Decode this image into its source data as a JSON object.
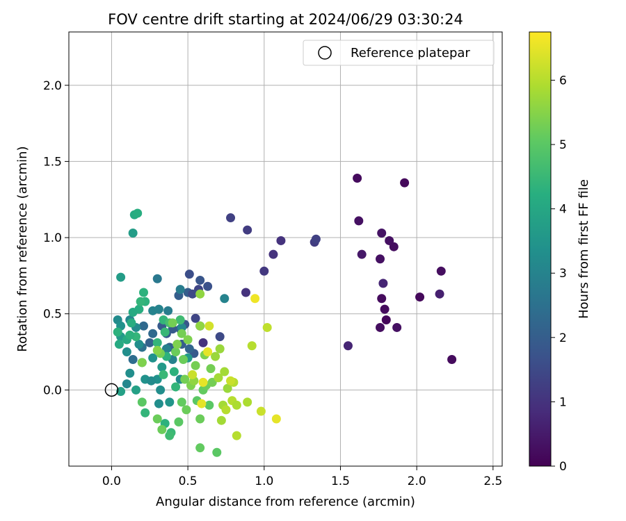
{
  "chart_data": {
    "type": "scatter",
    "title": "FOV centre drift starting at 2024/06/29 03:30:24",
    "xlabel": "Angular distance from reference (arcmin)",
    "ylabel": "Rotation from reference (arcmin)",
    "xlim": [
      -0.28,
      2.56
    ],
    "ylim": [
      -0.5,
      2.35
    ],
    "xticks": [
      0.0,
      0.5,
      1.0,
      1.5,
      2.0,
      2.5
    ],
    "yticks": [
      0.0,
      0.5,
      1.0,
      1.5,
      2.0
    ],
    "grid": true,
    "legend": {
      "position": "top-right",
      "entries": [
        {
          "label": "Reference platepar",
          "marker": "open-circle"
        }
      ]
    },
    "reference_point": {
      "x": 0.0,
      "y": 0.0
    },
    "colorbar": {
      "label": "Hours from first FF file",
      "colormap": "viridis",
      "range": [
        0,
        6.75
      ],
      "ticks": [
        0,
        1,
        2,
        3,
        4,
        5,
        6
      ]
    },
    "series": [
      {
        "points": [
          [
            1.61,
            1.39,
            0.2
          ],
          [
            1.92,
            1.36,
            0.15
          ],
          [
            1.62,
            1.11,
            0.3
          ],
          [
            1.77,
            1.03,
            0.35
          ],
          [
            1.82,
            0.98,
            0.3
          ],
          [
            1.85,
            0.94,
            0.25
          ],
          [
            1.64,
            0.89,
            0.45
          ],
          [
            1.76,
            0.86,
            0.3
          ],
          [
            1.78,
            0.7,
            0.7
          ],
          [
            1.77,
            0.6,
            0.2
          ],
          [
            1.79,
            0.53,
            0.2
          ],
          [
            1.8,
            0.46,
            0.1
          ],
          [
            1.76,
            0.41,
            0.25
          ],
          [
            1.87,
            0.41,
            0.3
          ],
          [
            2.02,
            0.61,
            0.15
          ],
          [
            2.15,
            0.63,
            0.6
          ],
          [
            2.16,
            0.78,
            0.25
          ],
          [
            2.23,
            0.2,
            0.2
          ],
          [
            1.55,
            0.29,
            0.7
          ],
          [
            0.78,
            1.13,
            1.3
          ],
          [
            0.89,
            1.05,
            1.2
          ],
          [
            1.11,
            0.98,
            1.0
          ],
          [
            1.33,
            0.97,
            1.2
          ],
          [
            1.34,
            0.99,
            1.3
          ],
          [
            1.06,
            0.89,
            1.0
          ],
          [
            1.0,
            0.78,
            1.1
          ],
          [
            0.88,
            0.64,
            1.0
          ],
          [
            0.71,
            0.35,
            1.5
          ],
          [
            0.6,
            0.31,
            1.0
          ],
          [
            0.51,
            0.76,
            1.6
          ],
          [
            0.58,
            0.72,
            1.8
          ],
          [
            0.63,
            0.68,
            1.7
          ],
          [
            0.57,
            0.66,
            1.4
          ],
          [
            0.5,
            0.64,
            2.0
          ],
          [
            0.53,
            0.63,
            1.5
          ],
          [
            0.44,
            0.62,
            2.0
          ],
          [
            0.55,
            0.47,
            1.4
          ],
          [
            0.48,
            0.43,
            1.8
          ],
          [
            0.4,
            0.4,
            1.9
          ],
          [
            0.36,
            0.37,
            1.9
          ],
          [
            0.58,
            0.42,
            1.5
          ],
          [
            0.46,
            0.3,
            2.0
          ],
          [
            0.38,
            0.28,
            2.1
          ],
          [
            0.54,
            0.24,
            1.9
          ],
          [
            0.33,
            0.42,
            1.9
          ],
          [
            0.45,
            0.4,
            2.0
          ],
          [
            0.51,
            0.27,
            2.2
          ],
          [
            0.27,
            0.37,
            2.3
          ],
          [
            0.25,
            0.31,
            2.1
          ],
          [
            0.21,
            0.42,
            2.3
          ],
          [
            0.2,
            0.28,
            2.5
          ],
          [
            0.14,
            0.2,
            2.4
          ],
          [
            0.3,
            0.73,
            2.7
          ],
          [
            0.45,
            0.66,
            2.8
          ],
          [
            0.37,
            0.52,
            2.8
          ],
          [
            0.27,
            0.52,
            3.0
          ],
          [
            0.31,
            0.53,
            3.0
          ],
          [
            0.12,
            0.46,
            3.1
          ],
          [
            0.04,
            0.46,
            3.2
          ],
          [
            0.06,
            0.42,
            3.4
          ],
          [
            0.06,
            0.35,
            3.6
          ],
          [
            0.16,
            0.41,
            3.2
          ],
          [
            0.18,
            0.3,
            3.3
          ],
          [
            0.1,
            0.25,
            3.3
          ],
          [
            0.12,
            0.11,
            3.3
          ],
          [
            0.1,
            0.04,
            3.1
          ],
          [
            0.2,
            0.18,
            3.4
          ],
          [
            0.22,
            0.07,
            3.4
          ],
          [
            0.3,
            0.07,
            3.4
          ],
          [
            0.26,
            0.06,
            3.2
          ],
          [
            0.74,
            0.6,
            3.0
          ],
          [
            0.46,
            0.41,
            3.1
          ],
          [
            0.36,
            0.27,
            2.9
          ],
          [
            0.4,
            0.2,
            3.0
          ],
          [
            0.32,
            0.0,
            3.3
          ],
          [
            0.31,
            -0.09,
            3.3
          ],
          [
            0.38,
            -0.08,
            3.5
          ],
          [
            0.45,
            0.07,
            3.2
          ],
          [
            0.27,
            0.21,
            3.4
          ],
          [
            0.33,
            0.15,
            3.6
          ],
          [
            0.5,
            0.21,
            3.6
          ],
          [
            0.06,
            -0.01,
            3.8
          ],
          [
            0.16,
            0.0,
            3.8
          ],
          [
            0.06,
            0.74,
            3.7
          ],
          [
            0.14,
            1.03,
            3.7
          ],
          [
            0.15,
            1.15,
            4.1
          ],
          [
            0.17,
            1.16,
            4.2
          ],
          [
            0.21,
            0.64,
            4.3
          ],
          [
            0.22,
            0.58,
            4.3
          ],
          [
            0.18,
            0.53,
            4.2
          ],
          [
            0.14,
            0.51,
            4.1
          ],
          [
            0.19,
            0.58,
            4.4
          ],
          [
            0.13,
            0.44,
            4.2
          ],
          [
            0.16,
            0.35,
            4.4
          ],
          [
            0.1,
            0.33,
            4.1
          ],
          [
            0.05,
            0.3,
            4.1
          ],
          [
            0.04,
            0.38,
            4.3
          ],
          [
            0.12,
            0.36,
            4.3
          ],
          [
            0.3,
            0.31,
            4.4
          ],
          [
            0.35,
            0.38,
            4.5
          ],
          [
            0.36,
            0.22,
            4.3
          ],
          [
            0.41,
            0.12,
            4.3
          ],
          [
            0.34,
            0.1,
            4.5
          ],
          [
            0.42,
            0.02,
            4.4
          ],
          [
            0.35,
            -0.22,
            4.3
          ],
          [
            0.39,
            -0.28,
            4.5
          ],
          [
            0.38,
            -0.3,
            4.6
          ],
          [
            0.22,
            -0.15,
            4.4
          ],
          [
            0.34,
            0.46,
            4.4
          ],
          [
            0.45,
            0.46,
            4.6
          ],
          [
            0.38,
            0.44,
            4.7
          ],
          [
            0.2,
            -0.08,
            5.0
          ],
          [
            0.3,
            -0.19,
            5.2
          ],
          [
            0.33,
            -0.26,
            5.2
          ],
          [
            0.44,
            -0.21,
            5.0
          ],
          [
            0.49,
            -0.13,
            5.2
          ],
          [
            0.46,
            -0.08,
            5.1
          ],
          [
            0.56,
            -0.07,
            5.0
          ],
          [
            0.58,
            -0.19,
            5.2
          ],
          [
            0.58,
            -0.38,
            5.1
          ],
          [
            0.69,
            -0.41,
            5.0
          ],
          [
            0.64,
            -0.1,
            5.0
          ],
          [
            0.6,
            0.0,
            5.1
          ],
          [
            0.62,
            0.03,
            5.2
          ],
          [
            0.52,
            0.03,
            5.4
          ],
          [
            0.48,
            0.07,
            5.3
          ],
          [
            0.47,
            0.2,
            5.2
          ],
          [
            0.42,
            0.25,
            5.2
          ],
          [
            0.32,
            0.24,
            5.3
          ],
          [
            0.3,
            0.26,
            5.5
          ],
          [
            0.2,
            0.18,
            5.4
          ],
          [
            0.43,
            0.3,
            5.4
          ],
          [
            0.4,
            0.44,
            5.3
          ],
          [
            0.46,
            0.37,
            5.3
          ],
          [
            0.5,
            0.33,
            5.4
          ],
          [
            0.58,
            0.63,
            5.6
          ],
          [
            0.58,
            0.42,
            5.6
          ],
          [
            0.55,
            0.16,
            5.3
          ],
          [
            0.61,
            0.23,
            5.4
          ],
          [
            0.54,
            0.06,
            5.6
          ],
          [
            0.65,
            0.14,
            5.3
          ],
          [
            0.66,
            0.05,
            5.3
          ],
          [
            0.71,
            0.27,
            5.7
          ],
          [
            0.68,
            0.22,
            5.7
          ],
          [
            0.7,
            0.08,
            5.8
          ],
          [
            0.74,
            0.12,
            5.8
          ],
          [
            0.76,
            0.01,
            5.7
          ],
          [
            0.8,
            0.05,
            6.0
          ],
          [
            0.78,
            0.06,
            6.2
          ],
          [
            0.79,
            -0.07,
            6.0
          ],
          [
            0.73,
            -0.1,
            5.8
          ],
          [
            0.75,
            -0.13,
            6.0
          ],
          [
            0.72,
            -0.2,
            5.8
          ],
          [
            0.82,
            -0.1,
            5.9
          ],
          [
            0.89,
            -0.08,
            5.9
          ],
          [
            0.98,
            -0.14,
            6.2
          ],
          [
            0.82,
            -0.3,
            6.0
          ],
          [
            0.92,
            0.29,
            6.0
          ],
          [
            1.02,
            0.41,
            6.1
          ],
          [
            0.94,
            0.6,
            6.6
          ],
          [
            1.08,
            -0.19,
            6.5
          ],
          [
            0.63,
            0.25,
            6.5
          ],
          [
            0.6,
            0.05,
            6.5
          ],
          [
            0.59,
            -0.09,
            6.5
          ],
          [
            0.64,
            0.42,
            6.3
          ],
          [
            0.53,
            0.1,
            6.2
          ]
        ]
      }
    ]
  }
}
